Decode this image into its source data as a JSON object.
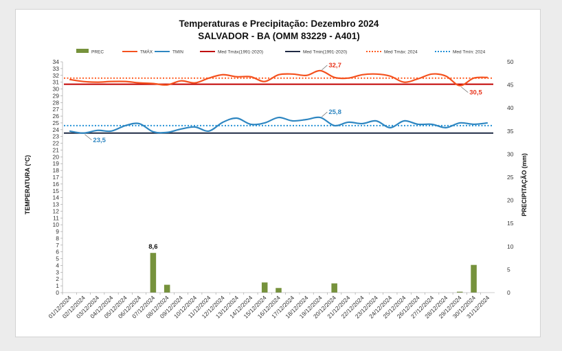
{
  "chart_data": {
    "type": "bar+line",
    "title": "Temperaturas e Precipitação: Dezembro 2024",
    "subtitle": "SALVADOR - BA (OMM 83229 - A401)",
    "ylabel": "TEMPERATURA  (°C)",
    "y2label": "PRECIPITAÇÃO  (mm)",
    "ylim": [
      0,
      34
    ],
    "y2lim": [
      0,
      50
    ],
    "y_ticks": [
      "0",
      "1",
      "2",
      "3",
      "4",
      "5",
      "6",
      "7",
      "8",
      "9",
      "10",
      "11",
      "12",
      "13",
      "14",
      "15",
      "16",
      "17",
      "18",
      "19",
      "20",
      "21",
      "22",
      "23",
      "24",
      "25",
      "26",
      "27",
      "28",
      "29",
      "30",
      "31",
      "32",
      "33",
      "34"
    ],
    "y2_ticks": [
      "0",
      "5",
      "10",
      "15",
      "20",
      "25",
      "30",
      "35",
      "40",
      "45",
      "50"
    ],
    "categories": [
      "01/12/2024",
      "02/12/2024",
      "03/12/2024",
      "04/12/2024",
      "05/12/2024",
      "06/12/2024",
      "07/12/2024",
      "08/12/2024",
      "09/12/2024",
      "10/12/2024",
      "11/12/2024",
      "12/12/2024",
      "13/12/2024",
      "14/12/2024",
      "15/12/2024",
      "16/12/2024",
      "17/12/2024",
      "18/12/2024",
      "19/12/2024",
      "20/12/2024",
      "21/12/2024",
      "22/12/2024",
      "23/12/2024",
      "24/12/2024",
      "25/12/2024",
      "26/12/2024",
      "27/12/2024",
      "28/12/2024",
      "29/12/2024",
      "30/12/2024",
      "31/12/2024"
    ],
    "series": [
      {
        "name": "PREC",
        "kind": "bar",
        "axis": "right",
        "color": "#76923c",
        "values": [
          0,
          0,
          0,
          0,
          0,
          0,
          8.6,
          1.7,
          0,
          0,
          0,
          0,
          0,
          0,
          2.2,
          1.0,
          0,
          0,
          0,
          2.0,
          0,
          0,
          0,
          0,
          0,
          0,
          0,
          0,
          0.2,
          6.0,
          0
        ]
      },
      {
        "name": "TMÁX",
        "kind": "line",
        "axis": "left",
        "color": "#f4511e",
        "values": [
          31.4,
          31.1,
          31.0,
          31.1,
          31.1,
          30.9,
          30.8,
          30.6,
          31.2,
          30.9,
          31.6,
          32.1,
          31.8,
          31.8,
          31.1,
          32.1,
          32.2,
          32.0,
          32.7,
          31.7,
          31.6,
          32.1,
          32.2,
          31.9,
          31.0,
          31.5,
          32.2,
          31.9,
          30.5,
          31.6,
          31.7
        ]
      },
      {
        "name": "TMIN",
        "kind": "line",
        "axis": "left",
        "color": "#2e86c1",
        "values": [
          23.8,
          23.5,
          23.9,
          23.8,
          24.6,
          24.9,
          23.7,
          23.6,
          24.1,
          24.4,
          23.8,
          25.1,
          25.7,
          24.8,
          25.0,
          25.8,
          25.3,
          25.5,
          25.8,
          24.6,
          25.1,
          24.9,
          25.3,
          24.3,
          25.3,
          24.8,
          24.8,
          24.3,
          25.0,
          24.8,
          25.0
        ]
      },
      {
        "name": "Med Tmáx(1991-2020)",
        "kind": "hline",
        "axis": "left",
        "color": "#c00000",
        "value": 30.7
      },
      {
        "name": "Med Tmin(1991-2020)",
        "kind": "hline",
        "axis": "left",
        "color": "#1f2a44",
        "value": 23.5
      },
      {
        "name": "Med Tmáx: 2024",
        "kind": "hline-dotted",
        "axis": "left",
        "color": "#ff5a1f",
        "value": 31.6
      },
      {
        "name": "Med Tmín: 2024",
        "kind": "hline-dotted",
        "axis": "left",
        "color": "#1f8fd6",
        "value": 24.6
      }
    ],
    "annotations": [
      {
        "text": "32,7",
        "series": "TMÁX",
        "index": 18,
        "color": "#e8341c"
      },
      {
        "text": "30,5",
        "series": "TMÁX",
        "index": 28,
        "color": "#e8341c"
      },
      {
        "text": "25,8",
        "series": "TMIN",
        "index": 18,
        "color": "#2e86c1"
      },
      {
        "text": "23,5",
        "series": "TMIN",
        "index": 1,
        "color": "#2e86c1"
      },
      {
        "text": "8,6",
        "series": "PREC",
        "index": 6,
        "color": "#111111"
      }
    ],
    "legend_position": "top",
    "grid": false
  }
}
